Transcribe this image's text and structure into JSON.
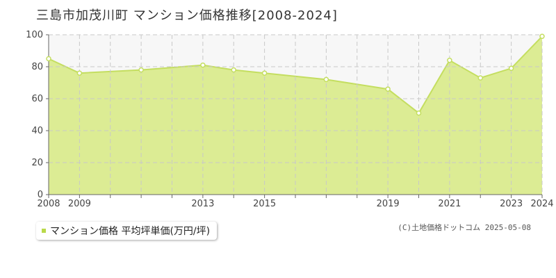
{
  "title": "三島市加茂川町 マンション価格推移[2008-2024]",
  "legend": {
    "label": "マンション価格 平均坪単価(万円/坪)"
  },
  "credit": "(C)土地価格ドットコム 2025-05-08",
  "colors": {
    "fill": "#dcec94",
    "line": "#c4de60",
    "marker_fill": "#ffffff",
    "grid": "#c8c8c8",
    "plot_bg": "#f7f7f7",
    "legend_swatch": "#b9d94a"
  },
  "chart_data": {
    "type": "area",
    "x": [
      2008,
      2009,
      2011,
      2013,
      2014,
      2015,
      2017,
      2019,
      2020,
      2021,
      2022,
      2023,
      2024
    ],
    "series": [
      {
        "name": "マンション価格 平均坪単価(万円/坪)",
        "values": [
          85,
          76,
          78,
          81,
          78,
          76,
          72,
          66,
          51,
          84,
          73,
          79,
          99
        ]
      }
    ],
    "xlim": [
      2008,
      2024
    ],
    "ylim": [
      0,
      100
    ],
    "x_tick_labels": [
      2008,
      2009,
      2013,
      2015,
      2019,
      2021,
      2023,
      2024
    ],
    "y_ticks": [
      0,
      20,
      40,
      60,
      80,
      100
    ],
    "grid": true,
    "legend_position": "bottom-left"
  }
}
